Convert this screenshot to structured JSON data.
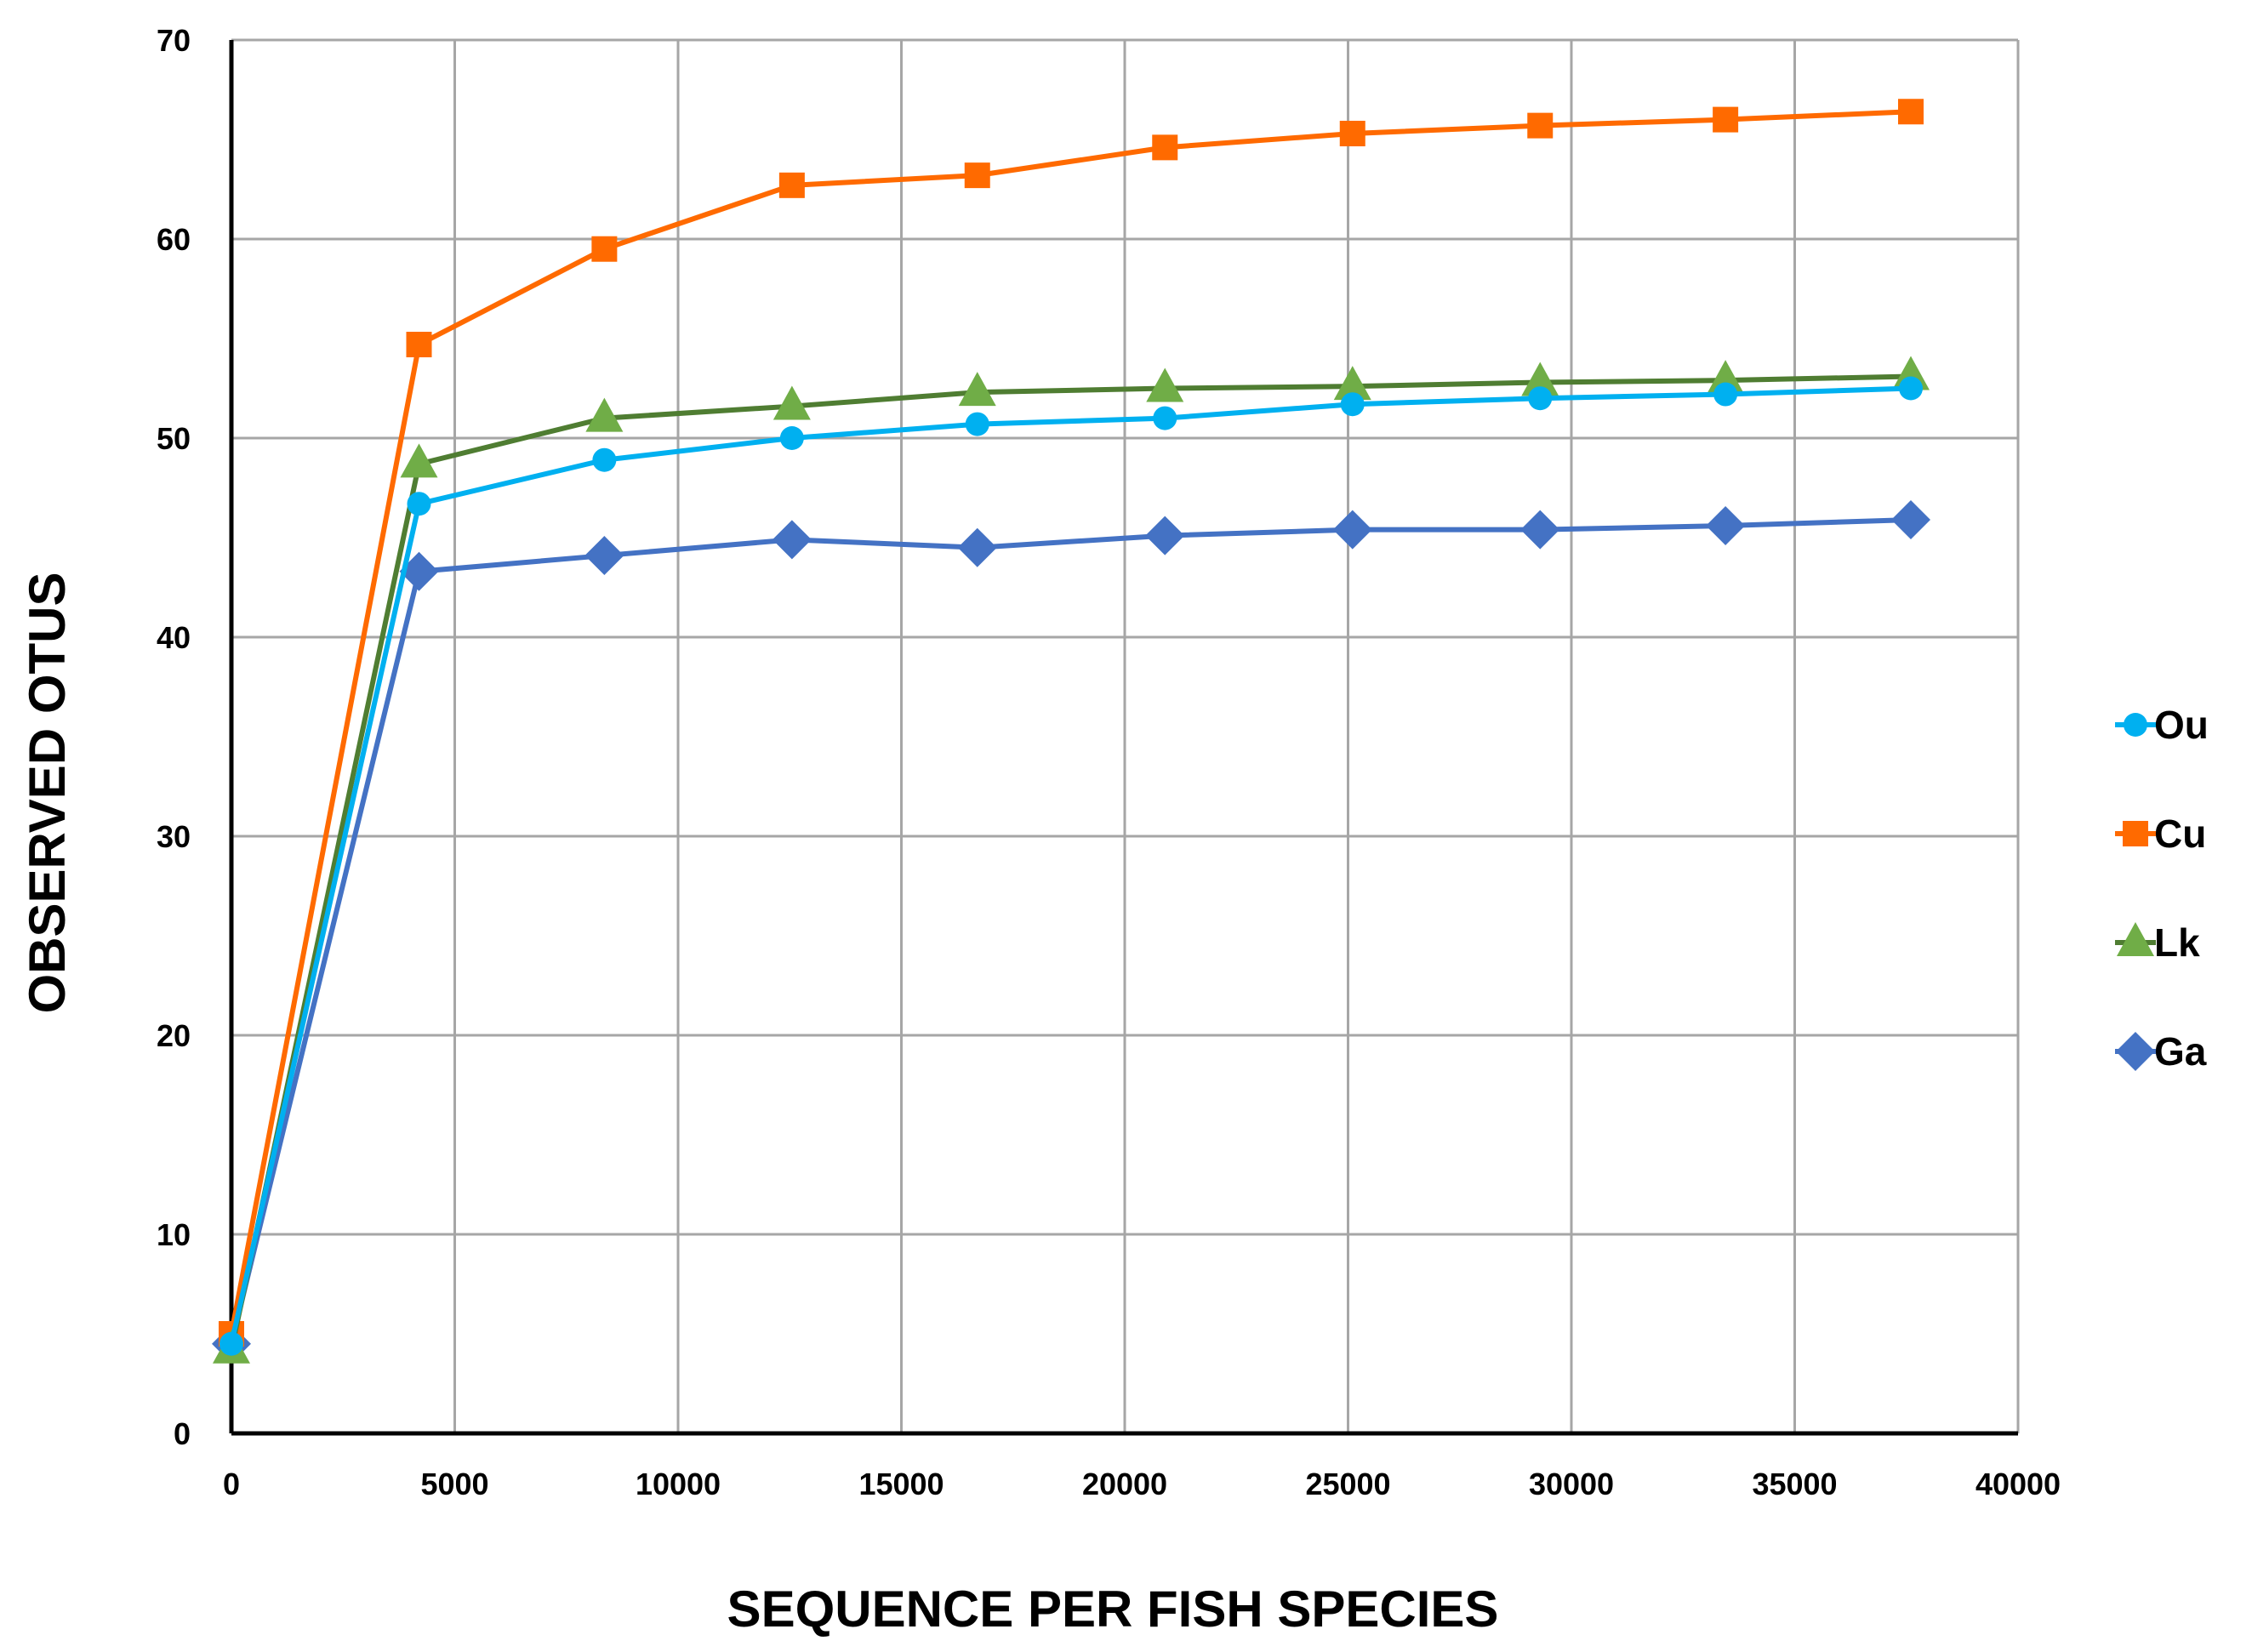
{
  "chart_data": {
    "type": "line",
    "title": "",
    "xlabel": "SEQUENCE PER FISH SPECIES",
    "ylabel": "OBSERVED OTUS",
    "xlim": [
      0,
      40000
    ],
    "ylim": [
      0,
      70
    ],
    "xticks": [
      0,
      5000,
      10000,
      15000,
      20000,
      25000,
      30000,
      35000,
      40000
    ],
    "yticks": [
      0,
      10,
      20,
      30,
      40,
      50,
      60,
      70
    ],
    "grid": true,
    "legend_position": "right",
    "x": [
      0,
      4200,
      8350,
      12550,
      16700,
      20900,
      25100,
      29300,
      33450,
      37600
    ],
    "series": [
      {
        "name": "Ou",
        "marker": "circle",
        "color": "#00b0f0",
        "values": [
          4.5,
          46.7,
          48.9,
          50.0,
          50.7,
          51.0,
          51.7,
          52.0,
          52.2,
          52.5
        ]
      },
      {
        "name": "Cu",
        "marker": "square",
        "color": "#ff6a00",
        "values": [
          5.0,
          54.7,
          59.5,
          62.7,
          63.2,
          64.6,
          65.3,
          65.7,
          66.0,
          66.4
        ]
      },
      {
        "name": "Lk",
        "marker": "triangle",
        "color": "#70ad47",
        "line_color": "#4f7d32",
        "values": [
          4.2,
          48.7,
          51.0,
          51.6,
          52.3,
          52.5,
          52.6,
          52.8,
          52.9,
          53.1
        ]
      },
      {
        "name": "Ga",
        "marker": "diamond",
        "color": "#4472c4",
        "values": [
          4.5,
          43.3,
          44.1,
          44.9,
          44.5,
          45.1,
          45.4,
          45.4,
          45.6,
          45.9
        ]
      }
    ]
  }
}
